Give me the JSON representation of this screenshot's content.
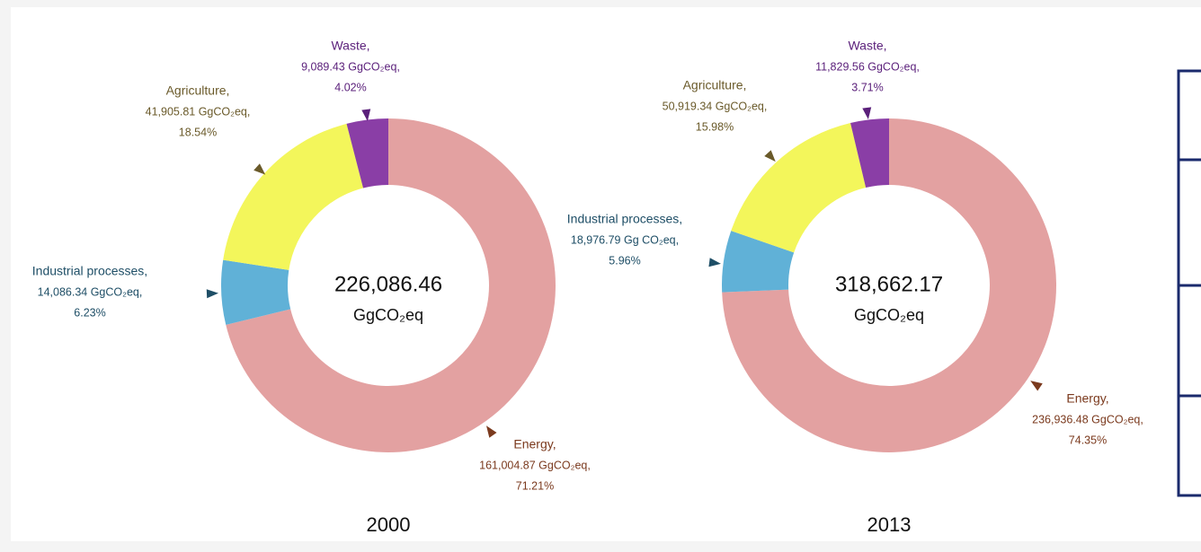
{
  "chart_data": [
    {
      "type": "donut",
      "title": "2000",
      "categories": [
        "Energy,",
        "Industrial processes,",
        "Agriculture,",
        "Waste,"
      ],
      "values": [
        71.21,
        6.23,
        18.54,
        4.02
      ],
      "value_labels": [
        "71.21%",
        "6.23%",
        "18.54%",
        "4.02%"
      ],
      "amounts": [
        161004.87,
        14086.34,
        41905.81,
        9089.43
      ],
      "amount_labels": [
        "161,004.87 GgCO₂eq,",
        "14,086.34 GgCO₂eq,",
        "41,905.81 GgCO₂eq,",
        "9,089.43 GgCO₂eq,"
      ],
      "colors": [
        "#e3a1a1",
        "#60b1d7",
        "#f3f65b",
        "#8a3ea6"
      ],
      "label_colors": [
        "#7b3a1e",
        "#1e4e66",
        "#6a5a2a",
        "#5a1f7a"
      ],
      "total": {
        "value": 226086.46,
        "label": "226,086.46"
      },
      "unit": "GgCO₂eq"
    },
    {
      "type": "donut",
      "title": "2013",
      "categories": [
        "Energy,",
        "Industrial processes,",
        "Agriculture,",
        "Waste,"
      ],
      "values": [
        74.35,
        5.96,
        15.98,
        3.71
      ],
      "value_labels": [
        "74.35%",
        "5.96%",
        "15.98%",
        "3.71%"
      ],
      "amounts": [
        236936.48,
        18976.79,
        50919.34,
        11829.56
      ],
      "amount_labels": [
        "236,936.48 GgCO₂eq,",
        "18,976.79 Gg CO₂eq,",
        "50,919.34 GgCO₂eq,",
        "11,829.56 GgCO₂eq,"
      ],
      "colors": [
        "#e3a1a1",
        "#60b1d7",
        "#f3f65b",
        "#8a3ea6"
      ],
      "label_colors": [
        "#7b3a1e",
        "#1e4e66",
        "#6a5a2a",
        "#5a1f7a"
      ],
      "total": {
        "value": 318662.17,
        "label": "318,662.17"
      },
      "unit": "GgCO₂eq"
    }
  ]
}
